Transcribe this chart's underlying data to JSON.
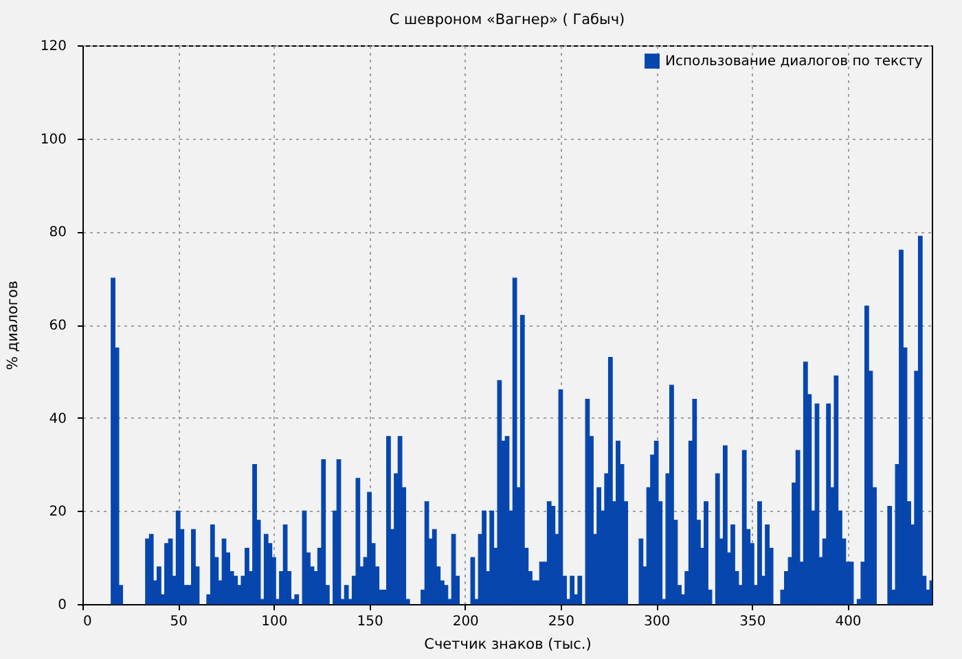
{
  "chart_data": {
    "type": "histogram",
    "title": "С шевроном «Вагнер» ( Габыч)",
    "xlabel": "Счетчик знаков (тыс.)",
    "ylabel": "% диалогов",
    "bins": [
      15,
      17,
      19,
      21,
      33,
      35,
      37,
      39,
      41,
      43,
      45,
      47,
      49,
      51,
      53,
      55,
      57,
      59,
      61,
      65,
      67,
      69,
      71,
      73,
      75,
      77,
      79,
      81,
      83,
      85,
      87,
      89,
      91,
      93,
      95,
      97,
      99,
      101,
      103,
      105,
      107,
      109,
      111,
      113,
      115,
      117,
      119,
      121,
      123,
      125,
      127,
      129,
      131,
      133,
      135,
      137,
      139,
      141,
      143,
      145,
      147,
      149,
      151,
      153,
      155,
      157,
      159,
      161,
      163,
      165,
      167,
      169,
      171,
      177,
      179,
      181,
      183,
      185,
      187,
      189,
      191,
      193,
      195,
      197,
      203,
      205,
      207,
      209,
      211,
      213,
      215,
      217,
      219,
      221,
      223,
      225,
      227,
      229,
      231,
      233,
      235,
      237,
      239,
      241,
      243,
      245,
      247,
      249,
      251,
      253,
      255,
      257,
      259,
      261,
      263,
      265,
      267,
      269,
      271,
      273,
      275,
      277,
      279,
      281,
      283,
      285,
      291,
      293,
      295,
      297,
      299,
      301,
      303,
      305,
      307,
      309,
      311,
      313,
      315,
      317,
      319,
      321,
      323,
      325,
      327,
      329,
      331,
      333,
      335,
      337,
      339,
      341,
      343,
      345,
      347,
      349,
      351,
      353,
      355,
      357,
      359,
      361,
      365,
      367,
      369,
      371,
      373,
      375,
      377,
      379,
      381,
      383,
      385,
      387,
      389,
      391,
      393,
      395,
      397,
      399,
      401,
      403,
      405,
      407,
      409,
      411,
      413,
      415,
      421,
      423,
      425,
      427,
      429,
      431,
      433,
      435,
      437,
      439,
      441,
      443,
      444
    ],
    "series": [
      {
        "name": "Использование диалогов по тексту",
        "color": "#0646ad",
        "values": [
          70,
          55,
          4,
          null,
          14,
          15,
          5,
          8,
          2,
          13,
          14,
          6,
          20,
          16,
          4,
          4,
          16,
          8,
          null,
          2,
          17,
          10,
          5,
          14,
          11,
          7,
          6,
          4,
          6,
          12,
          7,
          30,
          18,
          1,
          15,
          13,
          10,
          1,
          7,
          17,
          7,
          1,
          2,
          null,
          20,
          11,
          8,
          7,
          12,
          31,
          4,
          null,
          20,
          31,
          1,
          4,
          1,
          6,
          27,
          8,
          10,
          24,
          13,
          8,
          3,
          3,
          36,
          16,
          28,
          36,
          25,
          1,
          null,
          3,
          22,
          14,
          16,
          8,
          5,
          4,
          1,
          15,
          6,
          null,
          10,
          1,
          15,
          20,
          7,
          20,
          12,
          48,
          35,
          36,
          20,
          70,
          25,
          62,
          12,
          7,
          5,
          5,
          9,
          9,
          22,
          21,
          15,
          46,
          6,
          1,
          6,
          2,
          6,
          null,
          44,
          36,
          15,
          25,
          20,
          28,
          53,
          22,
          35,
          30,
          22,
          null,
          14,
          8,
          25,
          32,
          35,
          22,
          1,
          28,
          47,
          18,
          4,
          2,
          7,
          35,
          44,
          18,
          12,
          22,
          3,
          null,
          28,
          14,
          34,
          11,
          17,
          7,
          4,
          33,
          16,
          13,
          4,
          22,
          6,
          17,
          12,
          null,
          3,
          7,
          10,
          26,
          33,
          9,
          52,
          45,
          20,
          43,
          10,
          14,
          43,
          25,
          49,
          20,
          14,
          9,
          9,
          null,
          1,
          9,
          64,
          50,
          25,
          null,
          21,
          3,
          30,
          76,
          55,
          22,
          17,
          50,
          79,
          6,
          3,
          5
        ]
      }
    ],
    "xlim": [
      0,
      444
    ],
    "ylim": [
      0,
      120
    ],
    "xticks": [
      0,
      50,
      100,
      150,
      200,
      250,
      300,
      350,
      400
    ],
    "yticks": [
      0,
      20,
      40,
      60,
      80,
      100,
      120
    ],
    "grid": true,
    "legend": "top right"
  }
}
